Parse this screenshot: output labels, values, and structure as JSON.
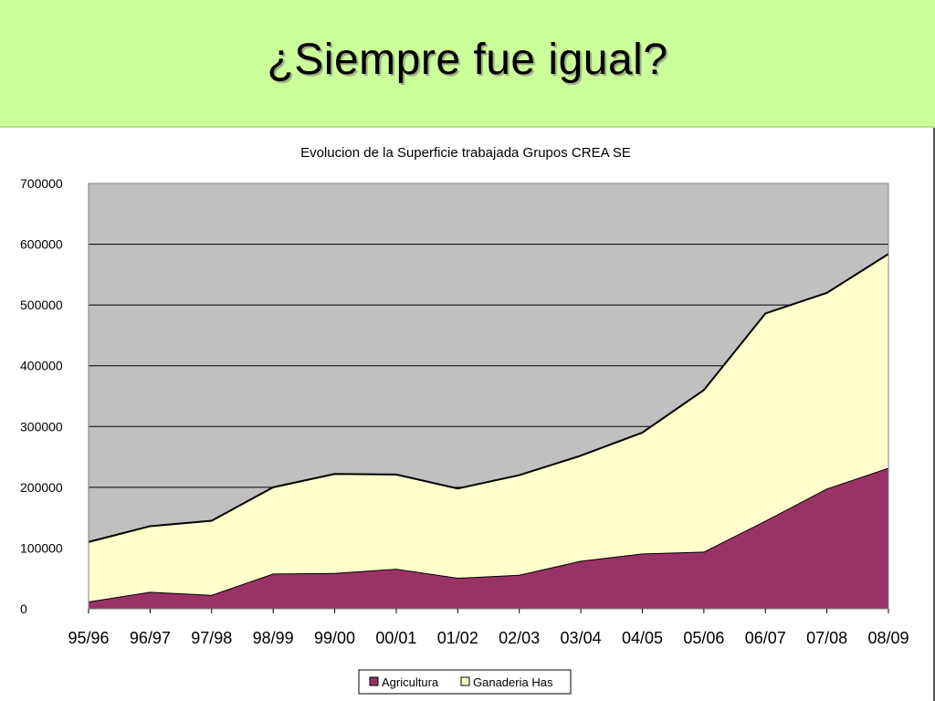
{
  "slide": {
    "title": "¿Siempre fue igual?"
  },
  "colors": {
    "header_bg": "#ccff99",
    "plot_bg": "#c0c0c0",
    "agricultura": "#993366",
    "ganaderia": "#ffffcc"
  },
  "chart_data": {
    "type": "area",
    "stacked": true,
    "title": "Evolucion de la Superficie trabajada Grupos CREA SE",
    "xlabel": "",
    "ylabel": "",
    "categories": [
      "95/96",
      "96/97",
      "97/98",
      "98/99",
      "99/00",
      "00/01",
      "01/02",
      "02/03",
      "03/04",
      "04/05",
      "05/06",
      "06/07",
      "07/08",
      "08/09"
    ],
    "ylim": [
      0,
      700000
    ],
    "yticks": [
      "0",
      "100000",
      "200000",
      "300000",
      "400000",
      "500000",
      "600000",
      "700000"
    ],
    "grid": true,
    "legend_position": "bottom",
    "series": [
      {
        "name": "Agricultura",
        "values": [
          12000,
          28000,
          23000,
          58000,
          59000,
          66000,
          51000,
          56000,
          79000,
          91000,
          94000,
          145000,
          198000,
          232000
        ]
      },
      {
        "name": "Ganaderia Has",
        "values": [
          98000,
          108000,
          122000,
          142000,
          163000,
          155000,
          147000,
          164000,
          173000,
          199000,
          266000,
          341000,
          322000,
          352000
        ]
      }
    ]
  }
}
